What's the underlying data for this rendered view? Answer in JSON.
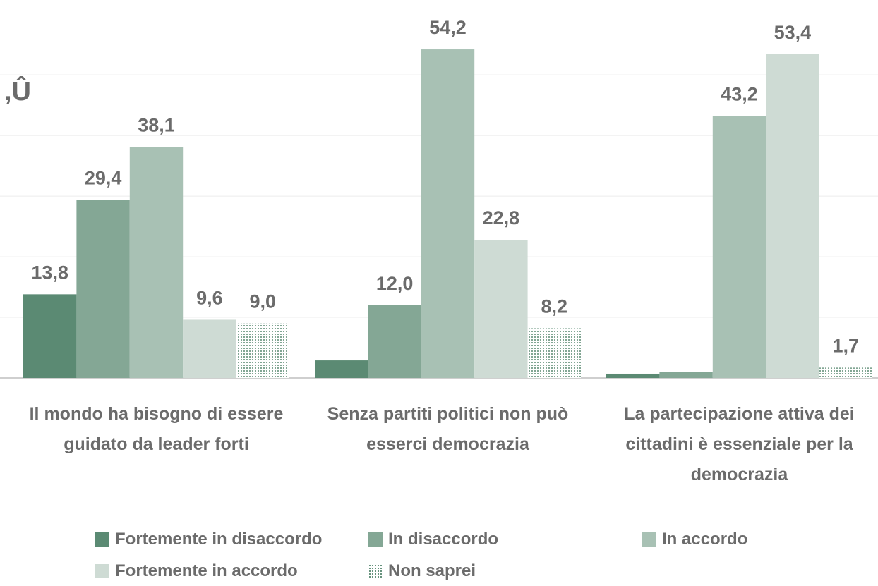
{
  "chart_data": {
    "type": "bar",
    "annotation": ",Û",
    "categories": [
      "Il mondo ha bisogno di essere guidato da leader forti",
      "Senza partiti politici non può esserci democrazia",
      "La partecipazione attiva dei cittadini è essenziale per la democrazia"
    ],
    "series": [
      {
        "name": "Fortemente in disaccordo",
        "color": "#5b8a73",
        "values": [
          13.8,
          2.9,
          0.7
        ],
        "value_labels": [
          "13,8",
          null,
          null
        ]
      },
      {
        "name": "In disaccordo",
        "color": "#84a795",
        "values": [
          29.4,
          12.0,
          1.0
        ],
        "value_labels": [
          "29,4",
          "12,0",
          null
        ]
      },
      {
        "name": "In accordo",
        "color": "#a8c1b4",
        "values": [
          38.1,
          54.2,
          43.2
        ],
        "value_labels": [
          "38,1",
          "54,2",
          "43,2"
        ]
      },
      {
        "name": "Fortemente in accordo",
        "color": "#cedbd4",
        "values": [
          9.6,
          22.8,
          53.4
        ],
        "value_labels": [
          "9,6",
          "22,8",
          "53,4"
        ]
      },
      {
        "name": "Non saprei",
        "color": "#5b8a73",
        "pattern": "dots",
        "values": [
          9.0,
          8.2,
          1.7
        ],
        "value_labels": [
          "9,0",
          "8,2",
          "1,7"
        ]
      }
    ],
    "ylim": [
      0,
      62
    ],
    "yticks": [
      0,
      10,
      20,
      30,
      40,
      50
    ],
    "grid": true
  }
}
